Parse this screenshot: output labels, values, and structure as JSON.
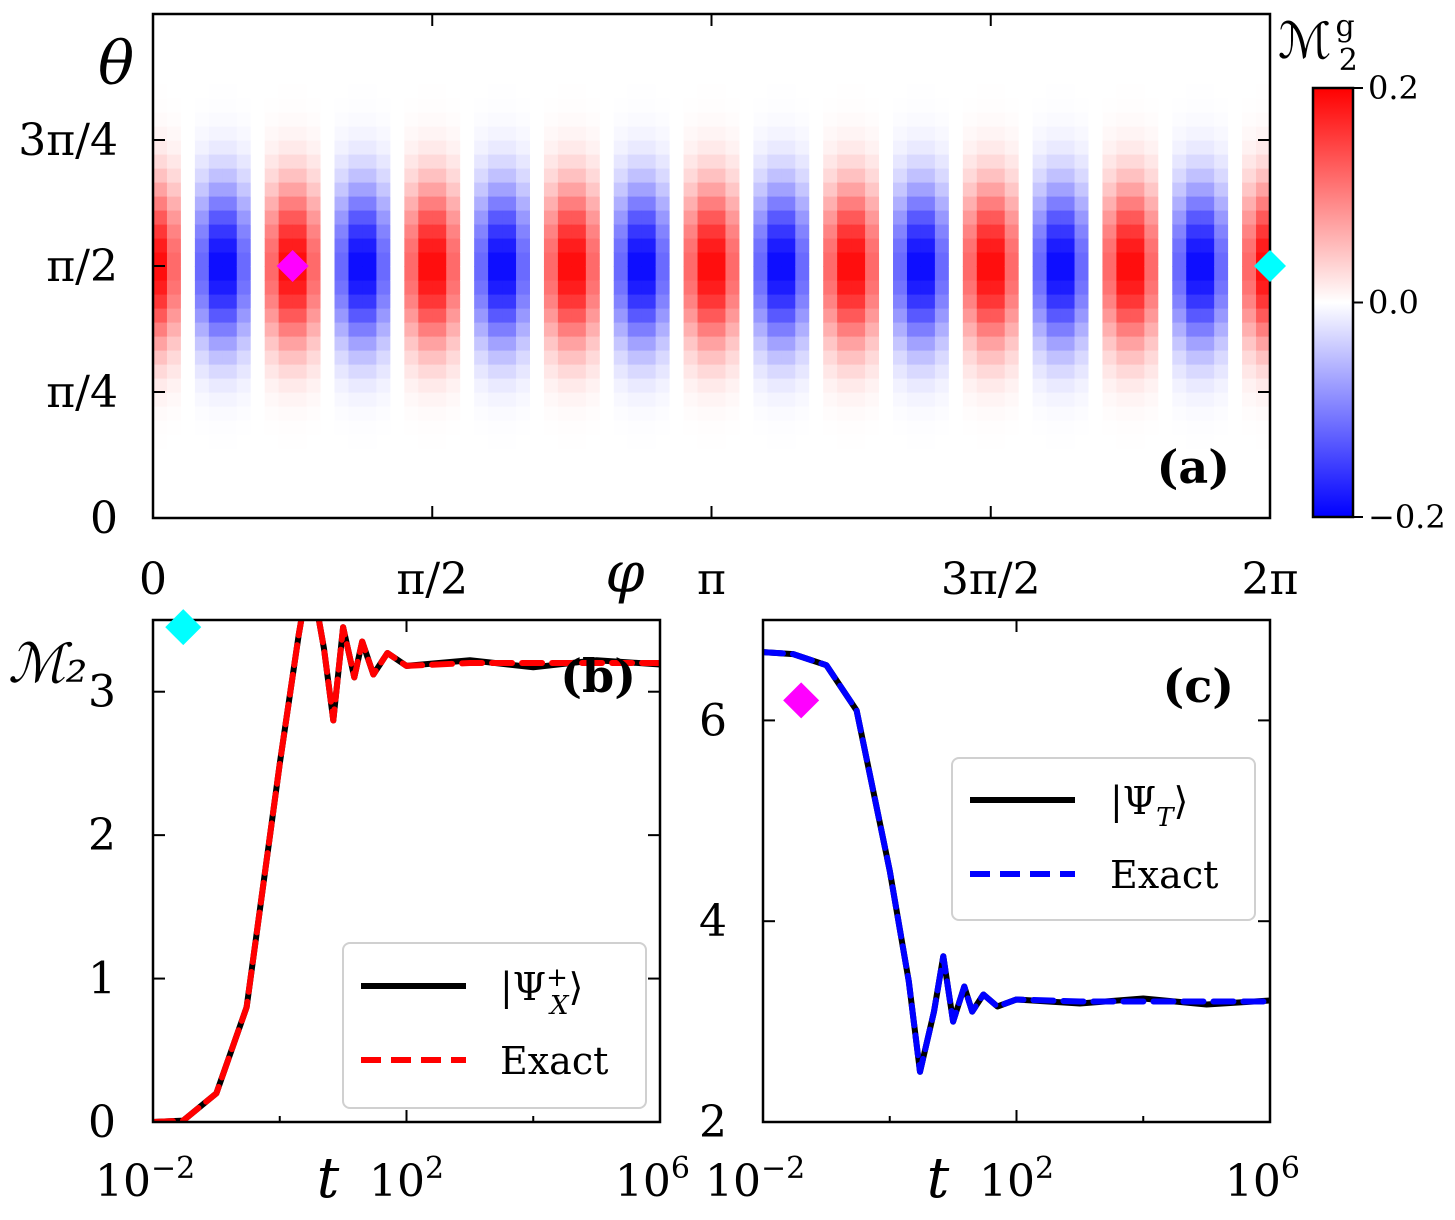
{
  "chart_data": [
    {
      "panel": "(a)",
      "type": "heatmap",
      "xlabel": "φ",
      "ylabel": "θ",
      "xlim": [
        0,
        6.2832
      ],
      "ylim": [
        0,
        3.1416
      ],
      "xticks": [
        {
          "value": 0,
          "label": "0"
        },
        {
          "value": 1.5708,
          "label": "π/2"
        },
        {
          "value": 3.1416,
          "label": "π"
        },
        {
          "value": 4.7124,
          "label": "3π/2"
        },
        {
          "value": 6.2832,
          "label": "2π"
        }
      ],
      "yticks": [
        {
          "value": 0,
          "label": "0"
        },
        {
          "value": 0.7854,
          "label": "π/4"
        },
        {
          "value": 1.5708,
          "label": "π/2"
        },
        {
          "value": 2.3562,
          "label": "3π/4"
        }
      ],
      "colorbar": {
        "label_main": "ℳ",
        "label_sup": "g",
        "label_sub": "2",
        "range": [
          -0.2,
          0.2
        ],
        "ticks": [
          {
            "value": 0.2,
            "label": "0.2"
          },
          {
            "value": 0.0,
            "label": "0.0"
          },
          {
            "value": -0.2,
            "label": "−0.2"
          }
        ],
        "colors": [
          "#0000ff",
          "#ffffff",
          "#ff0000"
        ]
      },
      "function": "0.2 · cos(8φ) · sin(θ)^8",
      "markers": [
        {
          "phi": 0.7854,
          "theta": 1.5708,
          "color": "#ff00ff",
          "shape": "diamond"
        },
        {
          "phi": 6.2832,
          "theta": 1.5708,
          "color": "#00ffff",
          "shape": "diamond"
        }
      ]
    },
    {
      "panel": "(b)",
      "type": "line",
      "xscale": "log",
      "xlim": [
        0.01,
        1000000
      ],
      "ylim": [
        0,
        3.5
      ],
      "xlabel": "t",
      "ylabel": "ℳ₂",
      "xticks": [
        {
          "value": 0.01,
          "base": "10",
          "exp": "−2"
        },
        {
          "value": 100,
          "base": "10",
          "exp": "2"
        },
        {
          "value": 1000000,
          "base": "10",
          "exp": "6"
        }
      ],
      "yticks": [
        0,
        1,
        2,
        3
      ],
      "marker": {
        "t": 0.03,
        "y": 3.45,
        "color": "#00ffff",
        "shape": "diamond"
      },
      "series": [
        {
          "name": "|Ψ",
          "name_sup": "+",
          "name_sub": "X",
          "name_end": "⟩",
          "color": "#000000",
          "style": "solid",
          "x": [
            0.01,
            0.03,
            0.1,
            0.3,
            1,
            2,
            3,
            5,
            7,
            10,
            15,
            20,
            30,
            50,
            100,
            1000,
            10000,
            100000,
            1000000
          ],
          "y": [
            0.0,
            0.01,
            0.2,
            0.8,
            2.5,
            3.4,
            3.85,
            3.3,
            2.8,
            3.45,
            3.1,
            3.35,
            3.12,
            3.27,
            3.18,
            3.22,
            3.17,
            3.22,
            3.19
          ]
        },
        {
          "name": "Exact",
          "color": "#ff0000",
          "style": "dashed",
          "x": [
            0.01,
            0.03,
            0.1,
            0.3,
            1,
            2,
            3,
            5,
            7,
            10,
            15,
            20,
            30,
            50,
            100,
            1000,
            10000,
            100000,
            1000000
          ],
          "y": [
            0.0,
            0.01,
            0.2,
            0.8,
            2.5,
            3.4,
            3.85,
            3.3,
            2.8,
            3.45,
            3.1,
            3.35,
            3.12,
            3.27,
            3.18,
            3.2,
            3.2,
            3.2,
            3.2
          ]
        }
      ]
    },
    {
      "panel": "(c)",
      "type": "line",
      "xscale": "log",
      "xlim": [
        0.01,
        1000000
      ],
      "ylim": [
        2,
        7
      ],
      "xlabel": "t",
      "xticks": [
        {
          "value": 0.01,
          "base": "10",
          "exp": "−2"
        },
        {
          "value": 100,
          "base": "10",
          "exp": "2"
        },
        {
          "value": 1000000,
          "base": "10",
          "exp": "6"
        }
      ],
      "yticks": [
        2,
        4,
        6
      ],
      "marker": {
        "t": 0.04,
        "y": 6.2,
        "color": "#ff00ff",
        "shape": "diamond"
      },
      "series": [
        {
          "name": "|Ψ",
          "name_sub": "T",
          "name_end": "⟩",
          "color": "#000000",
          "style": "solid",
          "x": [
            0.01,
            0.03,
            0.1,
            0.3,
            1,
            2,
            3,
            5,
            7,
            10,
            15,
            20,
            30,
            50,
            100,
            1000,
            10000,
            100000,
            1000000
          ],
          "y": [
            6.68,
            6.66,
            6.55,
            6.1,
            4.5,
            3.4,
            2.5,
            3.1,
            3.65,
            3.0,
            3.35,
            3.1,
            3.27,
            3.15,
            3.22,
            3.18,
            3.23,
            3.17,
            3.21
          ]
        },
        {
          "name": "Exact",
          "color": "#0000ff",
          "style": "dashed",
          "x": [
            0.01,
            0.03,
            0.1,
            0.3,
            1,
            2,
            3,
            5,
            7,
            10,
            15,
            20,
            30,
            50,
            100,
            1000,
            10000,
            100000,
            1000000
          ],
          "y": [
            6.68,
            6.66,
            6.55,
            6.1,
            4.5,
            3.4,
            2.5,
            3.1,
            3.65,
            3.0,
            3.35,
            3.1,
            3.27,
            3.15,
            3.22,
            3.2,
            3.2,
            3.2,
            3.2
          ]
        }
      ]
    }
  ]
}
